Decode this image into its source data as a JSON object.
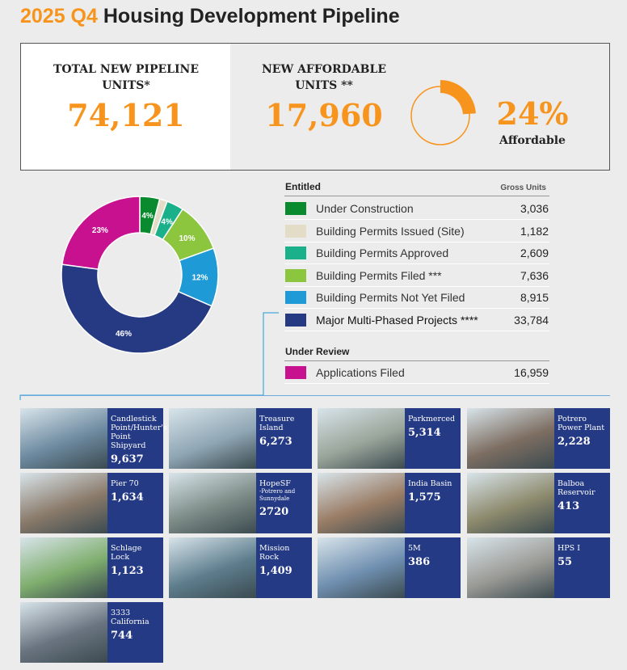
{
  "header": {
    "period": "2025 Q4",
    "title": "Housing Development Pipeline"
  },
  "summary": {
    "total_label": "TOTAL NEW PIPELINE UNITS*",
    "total_value": "74,121",
    "affordable_label": "NEW AFFORDABLE UNITS **",
    "affordable_value": "17,960",
    "affordable_pct": {
      "value": 24,
      "label": "24%"
    },
    "affordable_caption": "Affordable"
  },
  "pipeline": {
    "entitled_heading": "Entitled",
    "units_heading": "Gross Units",
    "review_heading": "Under Review",
    "rows": [
      {
        "name": "Under Construction",
        "color": "#0a8a2e",
        "units": 3036,
        "units_label": "3,036",
        "pct_label": "4%"
      },
      {
        "name": "Building Permits Issued (Site)",
        "color": "#e3dcc6",
        "units": 1182,
        "units_label": "1,182",
        "pct_label": null
      },
      {
        "name": "Building Permits Approved",
        "color": "#19b08a",
        "units": 2609,
        "units_label": "2,609",
        "pct_label": "4%"
      },
      {
        "name": "Building Permits Filed ***",
        "color": "#8cc63f",
        "units": 7636,
        "units_label": "7,636",
        "pct_label": "10%"
      },
      {
        "name": "Building Permits Not Yet Filed",
        "color": "#1e9ad6",
        "units": 8915,
        "units_label": "8,915",
        "pct_label": "12%"
      },
      {
        "name": "Major Multi-Phased Projects ****",
        "color": "#263a84",
        "units": 33784,
        "units_label": "33,784",
        "pct_label": "46%"
      },
      {
        "name": "Applications Filed",
        "color": "#c8118e",
        "units": 16959,
        "units_label": "16,959",
        "pct_label": "23%"
      }
    ]
  },
  "projects": [
    {
      "name": "Candlestick Point/Hunter's Point Shipyard",
      "units": "9,637"
    },
    {
      "name": "Treasure Island",
      "units": "6,273"
    },
    {
      "name": "Parkmerced",
      "units": "5,314"
    },
    {
      "name": "Potrero Power Plant",
      "units": "2,228"
    },
    {
      "name": "Pier 70",
      "units": "1,634"
    },
    {
      "name": "HopeSF",
      "subname": "-Potrero and Sunnydale",
      "units": "2720"
    },
    {
      "name": "India Basin",
      "units": "1,575"
    },
    {
      "name": "Balboa Reservoir",
      "units": "413"
    },
    {
      "name": "Schlage Lock",
      "units": "1,123"
    },
    {
      "name": "Mission Rock",
      "units": "1,409"
    },
    {
      "name": "5M",
      "units": "386"
    },
    {
      "name": "HPS I",
      "units": "55"
    },
    {
      "name": "3333 California",
      "units": "744"
    }
  ]
}
